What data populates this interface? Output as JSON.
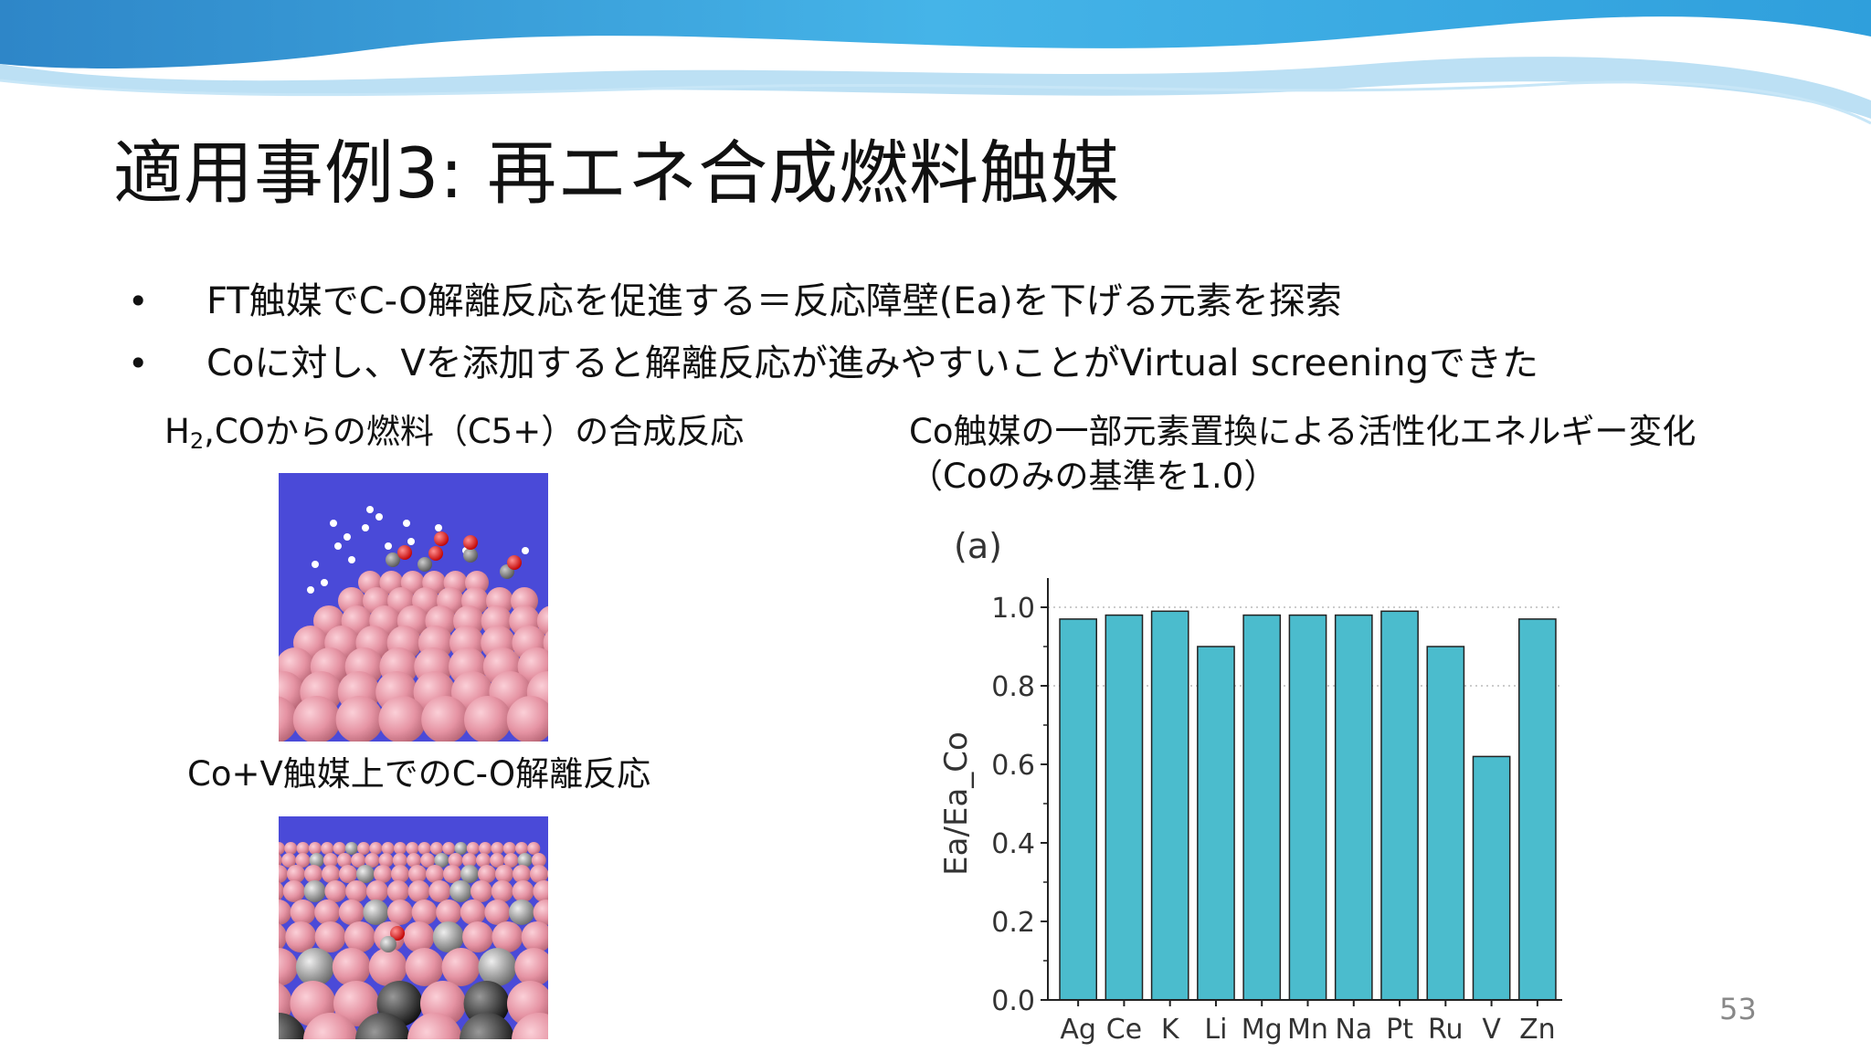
{
  "slide": {
    "title": "適用事例3: 再エネ合成燃料触媒",
    "page_number": "53",
    "accent_color": "#3a9fd8"
  },
  "bullets": [
    {
      "marker": "•",
      "text": "FT触媒でC-O解離反応を促進する＝反応障壁(Ea)を下げる元素を探索"
    },
    {
      "marker": "•",
      "text": "Coに対し、Vを添加すると解離反応が進みやすいことがVirtual screeningできた"
    }
  ],
  "left_panel": {
    "caption1_prefix": "H",
    "caption1_sub": "2",
    "caption1_rest": ",COからの燃料（C5+）の合成反応",
    "caption2": "Co+V触媒上でのC-O解離反応"
  },
  "right_panel": {
    "caption_line1": "Co触媒の一部元素置換による活性化エネルギー変化",
    "caption_line2": "（Coのみの基準を1.0）"
  },
  "chart_data": {
    "type": "bar",
    "panel_label": "(a)",
    "categories": [
      "Ag",
      "Ce",
      "K",
      "Li",
      "Mg",
      "Mn",
      "Na",
      "Pt",
      "Ru",
      "V",
      "Zn"
    ],
    "values": [
      0.97,
      0.98,
      0.99,
      0.9,
      0.98,
      0.98,
      0.98,
      0.99,
      0.9,
      0.62,
      0.97
    ],
    "ylabel": "Ea/Ea_Co",
    "xlabel": "",
    "ylim": [
      0,
      1.0
    ],
    "yticks": [
      "0.0",
      "0.2",
      "0.4",
      "0.6",
      "0.8",
      "1.0"
    ],
    "grid": "dotted horizontal at 0.8 and 1.0",
    "bar_color": "#4bbccd"
  }
}
